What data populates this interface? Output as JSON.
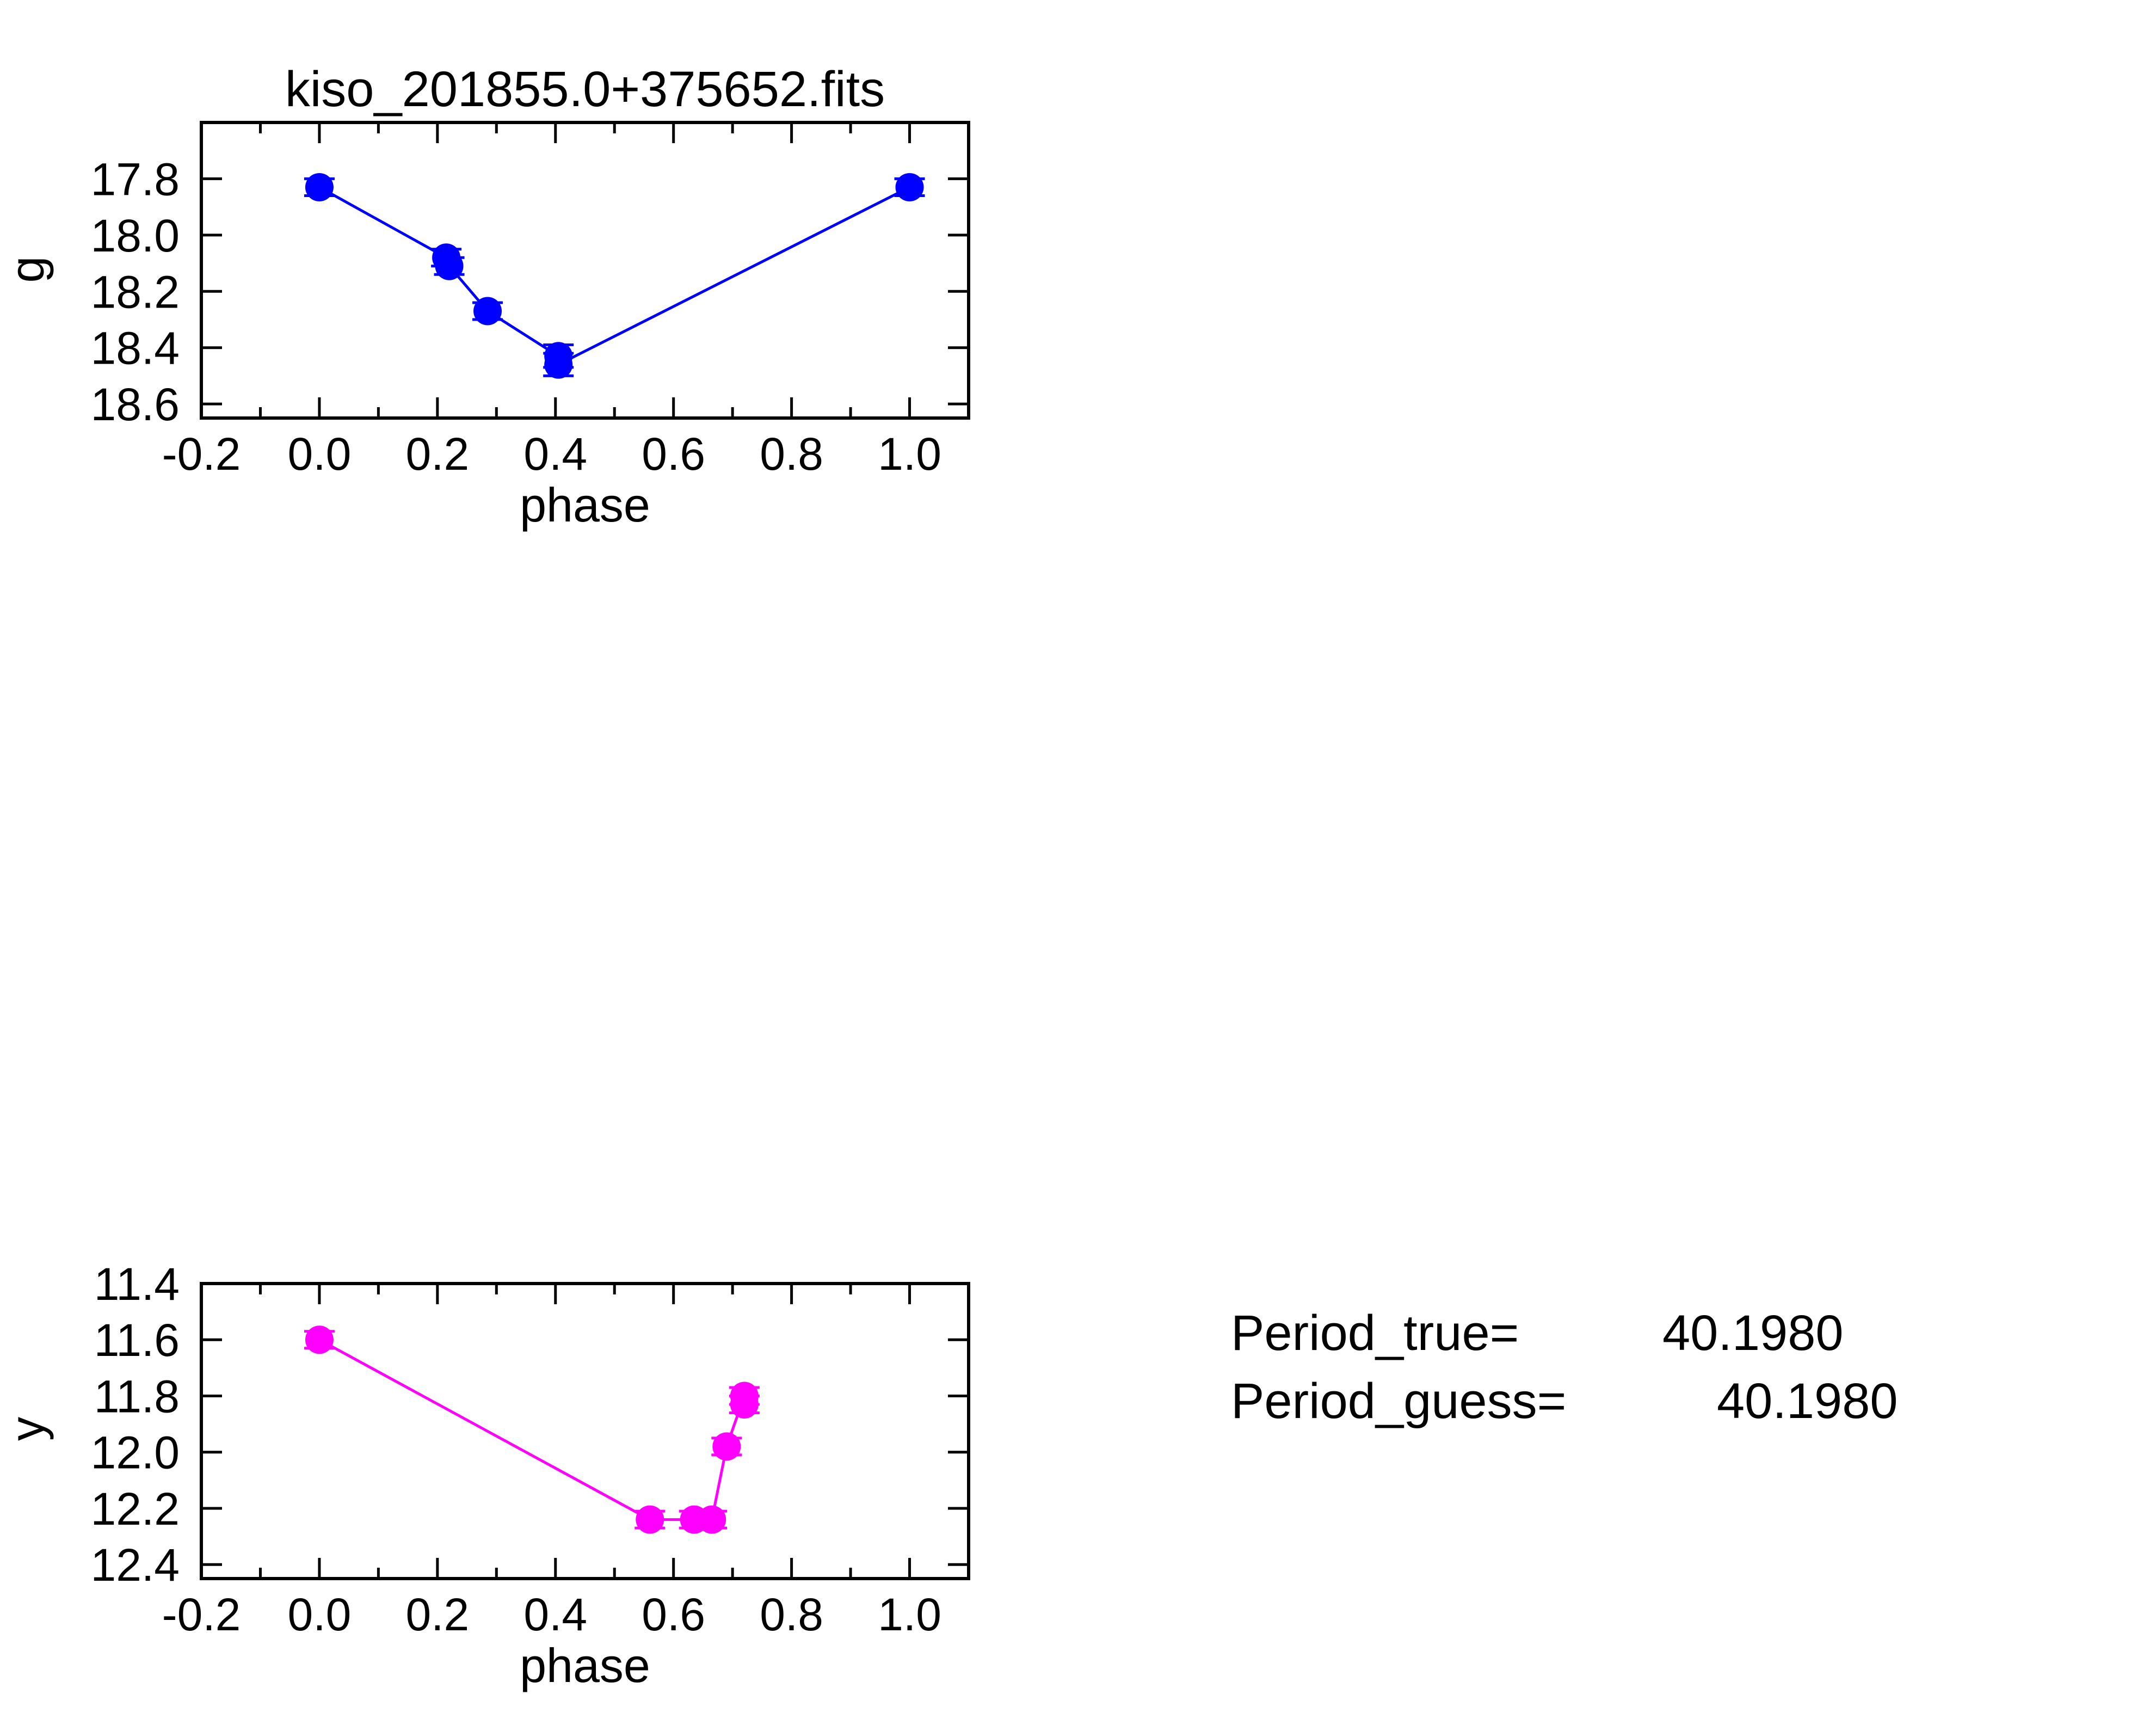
{
  "chart_data": [
    {
      "type": "scatter",
      "title": "kiso_201855.0+375652.fits",
      "xlabel": "phase",
      "ylabel": "g",
      "xlim": [
        -0.2,
        1.1
      ],
      "ylim": [
        17.6,
        18.65
      ],
      "y_inverted": true,
      "xticks": [
        "-0.2",
        "0.0",
        "0.2",
        "0.4",
        "0.6",
        "0.8",
        "1.0"
      ],
      "yticks": [
        "17.8",
        "18.0",
        "18.2",
        "18.4",
        "18.6"
      ],
      "color": "#0000ff",
      "series": [
        {
          "x": [
            0.0,
            0.215,
            0.22,
            0.285,
            0.405,
            0.405,
            1.0
          ],
          "y": [
            17.83,
            18.08,
            18.11,
            18.27,
            18.43,
            18.46,
            17.83
          ],
          "yerr": [
            0.03,
            0.03,
            0.03,
            0.03,
            0.04,
            0.04,
            0.03
          ]
        }
      ]
    },
    {
      "type": "scatter",
      "title": "",
      "xlabel": "phase",
      "ylabel": "y",
      "xlim": [
        -0.2,
        1.1
      ],
      "ylim": [
        11.4,
        12.45
      ],
      "y_inverted": true,
      "xticks": [
        "-0.2",
        "0.0",
        "0.2",
        "0.4",
        "0.6",
        "0.8",
        "1.0"
      ],
      "yticks": [
        "11.4",
        "11.6",
        "11.8",
        "12.0",
        "12.2",
        "12.4"
      ],
      "color": "#ff00ff",
      "series": [
        {
          "x": [
            0.0,
            0.56,
            0.635,
            0.665,
            0.69,
            0.72,
            0.72
          ],
          "y": [
            11.6,
            12.24,
            12.24,
            12.24,
            11.98,
            11.8,
            11.83
          ],
          "yerr": [
            0.03,
            0.03,
            0.03,
            0.03,
            0.03,
            0.03,
            0.03
          ]
        }
      ]
    }
  ],
  "periods": {
    "true_label": "Period_true=",
    "true_value": "40.1980",
    "guess_label": "Period_guess=",
    "guess_value": "40.1980"
  }
}
